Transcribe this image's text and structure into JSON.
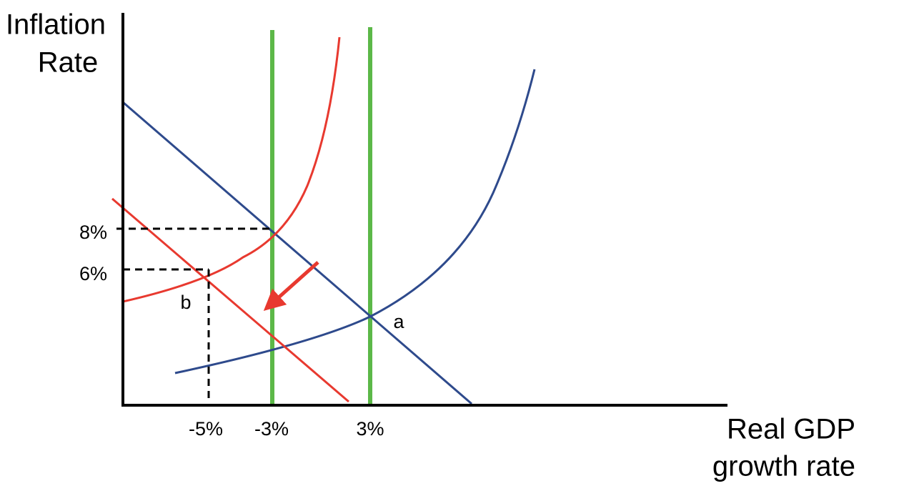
{
  "y_axis": {
    "label_lines": [
      "Inflation",
      "Rate"
    ],
    "ticks": [
      "8%",
      "6%"
    ]
  },
  "x_axis": {
    "label_lines": [
      "Real GDP",
      "growth rate"
    ],
    "ticks": [
      "-5%",
      "-3%",
      "3%"
    ]
  },
  "points": [
    {
      "label": "a"
    },
    {
      "label": "b"
    }
  ]
}
